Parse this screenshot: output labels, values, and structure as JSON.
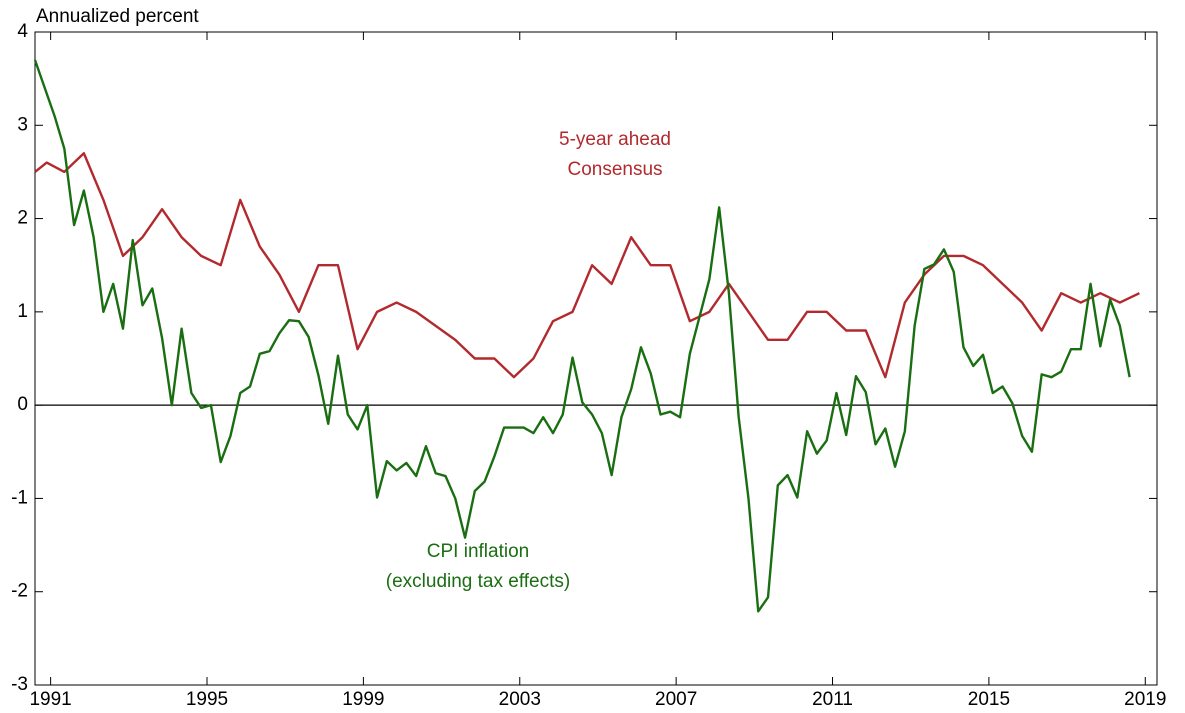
{
  "chart_data": {
    "type": "line",
    "ylabel": "Annualized percent",
    "xlim": [
      1990.6,
      2019.3
    ],
    "xticks": [
      1991,
      1995,
      1999,
      2003,
      2007,
      2011,
      2015,
      2019
    ],
    "ylim": [
      -3,
      4
    ],
    "yticks": [
      -3,
      -2,
      -1,
      0,
      1,
      2,
      3,
      4
    ],
    "zero_line": true,
    "series": [
      {
        "name": "5-year ahead Consensus",
        "label_lines": [
          "5-year ahead",
          "Consensus"
        ],
        "color": "#b22a2e",
        "x": [
          1990.6,
          1990.9,
          1991.35,
          1991.85,
          1992.35,
          1992.85,
          1993.35,
          1993.85,
          1994.35,
          1994.85,
          1995.35,
          1995.85,
          1996.35,
          1996.85,
          1997.35,
          1997.85,
          1998.35,
          1998.85,
          1999.35,
          1999.85,
          2000.35,
          2000.85,
          2001.35,
          2001.85,
          2002.35,
          2002.85,
          2003.35,
          2003.85,
          2004.35,
          2004.85,
          2005.35,
          2005.85,
          2006.35,
          2006.85,
          2007.35,
          2007.85,
          2008.35,
          2008.85,
          2009.35,
          2009.85,
          2010.35,
          2010.85,
          2011.35,
          2011.85,
          2012.35,
          2012.85,
          2013.35,
          2013.85,
          2014.35,
          2014.85,
          2015.35,
          2015.85,
          2016.35,
          2016.85,
          2017.35,
          2017.85,
          2018.35,
          2018.85
        ],
        "values": [
          2.5,
          2.6,
          2.5,
          2.7,
          2.2,
          1.6,
          1.8,
          2.1,
          1.8,
          1.6,
          1.5,
          2.2,
          1.7,
          1.4,
          1.0,
          1.5,
          1.5,
          0.6,
          1.0,
          1.1,
          1.0,
          0.85,
          0.7,
          0.5,
          0.5,
          0.3,
          0.5,
          0.9,
          1.0,
          1.5,
          1.3,
          1.8,
          1.5,
          1.5,
          0.9,
          1.0,
          1.3,
          1.0,
          0.7,
          0.7,
          1.0,
          1.0,
          0.8,
          0.8,
          0.3,
          1.1,
          1.4,
          1.6,
          1.6,
          1.5,
          1.3,
          1.1,
          0.8,
          1.2,
          1.1,
          1.2,
          1.1,
          1.2
        ]
      },
      {
        "name": "CPI inflation (excluding tax effects)",
        "label_lines": [
          "CPI inflation",
          "(excluding tax effects)"
        ],
        "color": "#1a6e12",
        "x": [
          1990.6,
          1990.85,
          1991.1,
          1991.35,
          1991.6,
          1991.85,
          1992.1,
          1992.35,
          1992.6,
          1992.85,
          1993.1,
          1993.35,
          1993.6,
          1993.85,
          1994.1,
          1994.35,
          1994.6,
          1994.85,
          1995.1,
          1995.35,
          1995.6,
          1995.85,
          1996.1,
          1996.35,
          1996.6,
          1996.85,
          1997.1,
          1997.35,
          1997.6,
          1997.85,
          1998.1,
          1998.35,
          1998.6,
          1998.85,
          1999.1,
          1999.35,
          1999.6,
          1999.85,
          2000.1,
          2000.35,
          2000.6,
          2000.85,
          2001.1,
          2001.35,
          2001.6,
          2001.85,
          2002.1,
          2002.35,
          2002.6,
          2002.85,
          2003.1,
          2003.35,
          2003.6,
          2003.85,
          2004.1,
          2004.35,
          2004.6,
          2004.85,
          2005.1,
          2005.35,
          2005.6,
          2005.85,
          2006.1,
          2006.35,
          2006.6,
          2006.85,
          2007.1,
          2007.35,
          2007.6,
          2007.85,
          2008.1,
          2008.35,
          2008.6,
          2008.85,
          2009.1,
          2009.35,
          2009.6,
          2009.85,
          2010.1,
          2010.35,
          2010.6,
          2010.85,
          2011.1,
          2011.35,
          2011.6,
          2011.85,
          2012.1,
          2012.35,
          2012.6,
          2012.85,
          2013.1,
          2013.35,
          2013.6,
          2013.85,
          2014.1,
          2014.35,
          2014.6,
          2014.85,
          2015.1,
          2015.35,
          2015.6,
          2015.85,
          2016.1,
          2016.35,
          2016.6,
          2016.85,
          2017.1,
          2017.35,
          2017.6,
          2017.85,
          2018.1,
          2018.35,
          2018.6
        ],
        "values": [
          3.7,
          3.4,
          3.1,
          2.75,
          1.93,
          2.3,
          1.8,
          1.0,
          1.3,
          0.82,
          1.77,
          1.07,
          1.25,
          0.72,
          0.0,
          0.82,
          0.13,
          -0.03,
          0.0,
          -0.61,
          -0.33,
          0.13,
          0.2,
          0.55,
          0.58,
          0.77,
          0.91,
          0.9,
          0.73,
          0.32,
          -0.2,
          0.53,
          -0.1,
          -0.26,
          0.0,
          -0.99,
          -0.6,
          -0.7,
          -0.62,
          -0.76,
          -0.44,
          -0.73,
          -0.76,
          -1.0,
          -1.42,
          -0.92,
          -0.82,
          -0.55,
          -0.24,
          -0.24,
          -0.24,
          -0.3,
          -0.13,
          -0.3,
          -0.1,
          0.51,
          0.03,
          -0.1,
          -0.3,
          -0.75,
          -0.13,
          0.17,
          0.62,
          0.34,
          -0.1,
          -0.07,
          -0.13,
          0.55,
          0.95,
          1.35,
          2.12,
          1.2,
          -0.13,
          -1.0,
          -2.21,
          -2.06,
          -0.86,
          -0.75,
          -0.99,
          -0.28,
          -0.52,
          -0.38,
          0.13,
          -0.32,
          0.31,
          0.14,
          -0.42,
          -0.25,
          -0.66,
          -0.28,
          0.85,
          1.46,
          1.51,
          1.67,
          1.43,
          0.62,
          0.42,
          0.54,
          0.13,
          0.2,
          0.02,
          -0.33,
          -0.5,
          0.33,
          0.3,
          0.36,
          0.6,
          0.6,
          1.3,
          0.63,
          1.13,
          0.85,
          0.3
        ]
      }
    ]
  }
}
